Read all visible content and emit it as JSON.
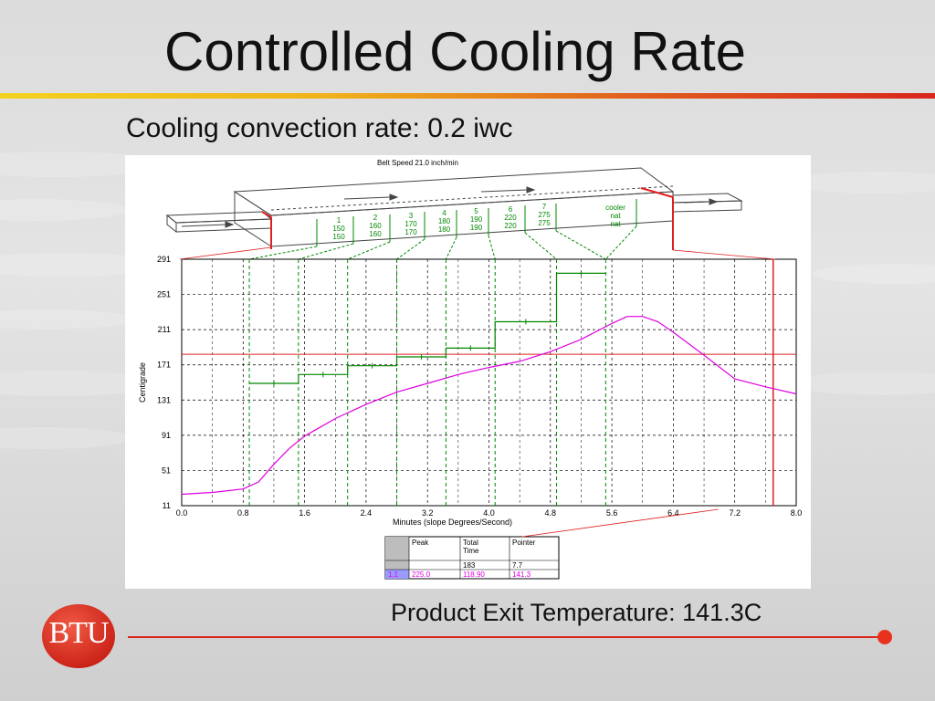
{
  "slide": {
    "title": "Controlled Cooling Rate",
    "subtitle": "Cooling convection rate:  0.2 iwc",
    "footer": "Product Exit Temperature:  141.3C",
    "logo_text": "BTU",
    "accent_colors": {
      "brand_red": "#d8261c",
      "gold": "#f0c419",
      "chart_green": "#008800",
      "profile_magenta": "#e000e0"
    }
  },
  "furnace": {
    "belt_speed": "Belt Speed 21.0 inch/min",
    "zones": [
      {
        "label": "1",
        "top": "150",
        "bottom": "150"
      },
      {
        "label": "2",
        "top": "160",
        "bottom": "160"
      },
      {
        "label": "3",
        "top": "170",
        "bottom": "170"
      },
      {
        "label": "4",
        "top": "180",
        "bottom": "180"
      },
      {
        "label": "5",
        "top": "190",
        "bottom": "190"
      },
      {
        "label": "6",
        "top": "220",
        "bottom": "220"
      },
      {
        "label": "7",
        "top": "275",
        "bottom": "275"
      },
      {
        "label": "cooler",
        "top": "nat",
        "bottom": "nat"
      }
    ]
  },
  "chart_data": {
    "type": "line",
    "title": "",
    "xlabel": "Minutes (slope Degrees/Second)",
    "ylabel": "Centigrade",
    "xlim": [
      0,
      8.0
    ],
    "ylim": [
      11,
      291
    ],
    "x_ticks": [
      "0.0",
      "0.8",
      "1.6",
      "2.4",
      "3.2",
      "4.0",
      "4.8",
      "5.6",
      "6.4",
      "7.2",
      "8.0"
    ],
    "y_ticks": [
      "291",
      "251",
      "211",
      "171",
      "131",
      "91",
      "51",
      "11"
    ],
    "grid": true,
    "reference_line_y": 183,
    "pointer_x": 7.7,
    "series": [
      {
        "x": [
          0.0,
          0.4,
          0.8,
          1.0,
          1.2,
          1.4,
          1.6,
          1.8,
          2.0,
          2.4,
          2.8,
          3.2,
          3.6,
          4.0,
          4.4,
          4.8,
          5.2,
          5.6,
          5.8,
          6.0,
          6.2,
          6.4,
          6.8,
          7.2,
          7.6,
          8.0
        ],
        "y": [
          24,
          26,
          30,
          38,
          58,
          76,
          90,
          100,
          110,
          126,
          140,
          150,
          160,
          168,
          175,
          186,
          200,
          218,
          226,
          226,
          220,
          208,
          182,
          155,
          146,
          138
        ]
      },
      {
        "x": [
          0.88,
          1.52,
          1.52,
          2.16,
          2.16,
          2.8,
          2.8,
          3.44,
          3.44,
          4.08,
          4.08,
          4.88,
          4.88,
          5.52
        ],
        "y": [
          150,
          150,
          160,
          160,
          170,
          170,
          180,
          180,
          190,
          190,
          220,
          220,
          275,
          275
        ]
      }
    ]
  },
  "table": {
    "headers": [
      "",
      "Peak",
      "Total Time",
      "Pointer"
    ],
    "rows": [
      [
        "",
        "",
        "183",
        "7.7"
      ],
      [
        "1.1",
        "225.0",
        "118.90",
        "141.3"
      ]
    ]
  }
}
